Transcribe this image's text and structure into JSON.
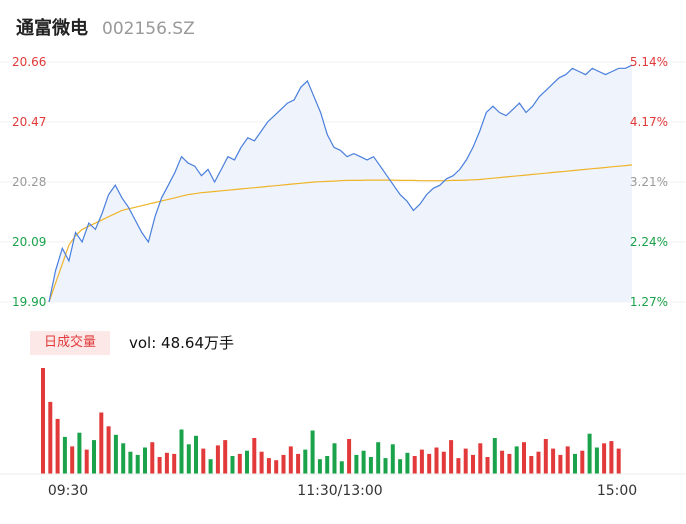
{
  "header": {
    "name": "通富微电",
    "code": "002156.SZ"
  },
  "volume_panel": {
    "tag": "日成交量",
    "label": "vol: 48.64万手"
  },
  "colors": {
    "up": "#e23a3a",
    "down": "#1aa34a",
    "price": "#4a7fdc",
    "avg": "#f0b429",
    "fill": "#eef3fc"
  },
  "chart_data": [
    {
      "type": "line",
      "y_ticks": [
        "20.66",
        "20.47",
        "20.28",
        "20.09",
        "19.90"
      ],
      "y_range": [
        19.9,
        20.66
      ],
      "pct_ticks": [
        "5.14%",
        "4.17%",
        "3.21%",
        "2.24%",
        "1.27%"
      ],
      "x_ticks": [
        "09:30",
        "11:30/13:00",
        "15:00"
      ],
      "series": [
        {
          "values": [
            19.9,
            20.0,
            20.07,
            20.03,
            20.12,
            20.09,
            20.15,
            20.13,
            20.18,
            20.24,
            20.27,
            20.23,
            20.2,
            20.16,
            20.12,
            20.09,
            20.17,
            20.23,
            20.27,
            20.31,
            20.36,
            20.34,
            20.33,
            20.3,
            20.32,
            20.28,
            20.32,
            20.36,
            20.35,
            20.39,
            20.42,
            20.41,
            20.44,
            20.47,
            20.49,
            20.51,
            20.53,
            20.54,
            20.58,
            20.6,
            20.55,
            20.5,
            20.43,
            20.39,
            20.38,
            20.36,
            20.37,
            20.36,
            20.35,
            20.36,
            20.33,
            20.3,
            20.27,
            20.24,
            20.22,
            20.19,
            20.21,
            20.24,
            20.26,
            20.27,
            20.29,
            20.3,
            20.32,
            20.35,
            20.39,
            20.44,
            20.5,
            20.52,
            20.5,
            20.49,
            20.51,
            20.53,
            20.5,
            20.52,
            20.55,
            20.57,
            20.59,
            20.61,
            20.62,
            20.64,
            20.63,
            20.62,
            20.64,
            20.63,
            20.62,
            20.63,
            20.64,
            20.64,
            20.65
          ]
        },
        {
          "values": [
            19.9,
            19.96,
            20.02,
            20.08,
            20.11,
            20.13,
            20.14,
            20.15,
            20.16,
            20.17,
            20.18,
            20.19,
            20.195,
            20.2,
            20.205,
            20.21,
            20.215,
            20.22,
            20.225,
            20.23,
            20.235,
            20.24,
            20.243,
            20.246,
            20.248,
            20.25,
            20.252,
            20.254,
            20.256,
            20.258,
            20.26,
            20.262,
            20.264,
            20.266,
            20.268,
            20.27,
            20.272,
            20.274,
            20.276,
            20.278,
            20.28,
            20.281,
            20.282,
            20.283,
            20.284,
            20.285,
            20.285,
            20.285,
            20.286,
            20.286,
            20.286,
            20.286,
            20.286,
            20.285,
            20.285,
            20.285,
            20.284,
            20.284,
            20.284,
            20.284,
            20.284,
            20.285,
            20.285,
            20.286,
            20.287,
            20.288,
            20.29,
            20.292,
            20.294,
            20.296,
            20.298,
            20.3,
            20.302,
            20.304,
            20.306,
            20.308,
            20.31,
            20.312,
            20.314,
            20.316,
            20.318,
            20.32,
            20.322,
            20.324,
            20.326,
            20.328,
            20.33,
            20.332,
            20.334
          ]
        }
      ]
    },
    {
      "type": "bar",
      "series": [
        {
          "values": [
            10.0,
            6.8,
            5.2,
            3.5,
            2.6,
            3.9,
            2.3,
            3.2,
            5.8,
            4.5,
            3.7,
            2.9,
            2.1,
            1.8,
            2.5,
            3.0,
            1.6,
            2.0,
            1.9,
            4.2,
            2.8,
            3.6,
            2.4,
            1.4,
            2.7,
            3.2,
            1.7,
            1.9,
            2.2,
            3.4,
            2.1,
            1.5,
            1.3,
            1.8,
            2.6,
            1.9,
            2.3,
            4.1,
            1.4,
            1.7,
            2.9,
            1.2,
            3.3,
            1.8,
            2.2,
            1.6,
            3.0,
            1.5,
            2.8,
            1.4,
            2.0,
            1.7,
            2.3,
            1.9,
            2.5,
            2.1,
            3.2,
            1.5,
            2.4,
            1.8,
            2.9,
            1.6,
            3.4,
            2.2,
            1.9,
            2.6,
            3.0,
            1.7,
            2.1,
            3.3,
            2.4,
            1.8,
            2.6,
            1.9,
            2.2,
            3.8,
            2.5,
            2.9,
            3.1,
            2.4
          ]
        }
      ]
    }
  ]
}
